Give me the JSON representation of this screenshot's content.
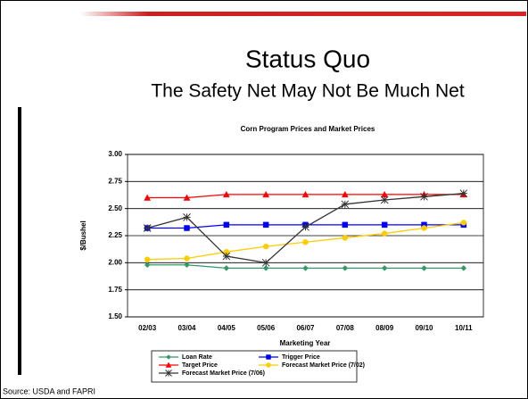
{
  "slide": {
    "title": "Status Quo",
    "subtitle": "The Safety Net May Not Be Much Net",
    "source": "Source: USDA and FAPRI"
  },
  "chart_data": {
    "type": "line",
    "title": "Corn Program Prices and Market Prices",
    "x_label": "Marketing Year",
    "y_label": "$/Bushel",
    "categories": [
      "02/03",
      "03/04",
      "04/05",
      "05/06",
      "06/07",
      "07/08",
      "08/09",
      "09/10",
      "10/11"
    ],
    "ylim": [
      1.5,
      3.0
    ],
    "yticks": [
      {
        "value": 1.5,
        "label": "1.50"
      },
      {
        "value": 1.75,
        "label": "1.75"
      },
      {
        "value": 2.0,
        "label": "2.00"
      },
      {
        "value": 2.25,
        "label": "2.25"
      },
      {
        "value": 2.5,
        "label": "2.50"
      },
      {
        "value": 2.75,
        "label": "2.75"
      },
      {
        "value": 3.0,
        "label": "3.00"
      }
    ],
    "grid": true,
    "series": [
      {
        "name": "Loan Rate",
        "color": "#339966",
        "marker": "diamond",
        "values": [
          1.98,
          1.98,
          1.95,
          1.95,
          1.95,
          1.95,
          1.95,
          1.95,
          1.95
        ]
      },
      {
        "name": "Trigger Price",
        "color": "#0000ff",
        "marker": "square",
        "values": [
          2.32,
          2.32,
          2.35,
          2.35,
          2.35,
          2.35,
          2.35,
          2.35,
          2.35
        ]
      },
      {
        "name": "Target Price",
        "color": "#ff0000",
        "marker": "triangle",
        "values": [
          2.6,
          2.6,
          2.63,
          2.63,
          2.63,
          2.63,
          2.63,
          2.63,
          2.63
        ]
      },
      {
        "name": "Forecast Market Price (7/02)",
        "color": "#ffcc00",
        "marker": "circle",
        "values": [
          2.03,
          2.04,
          2.1,
          2.15,
          2.19,
          2.23,
          2.27,
          2.32,
          2.37
        ]
      },
      {
        "name": "Forecast Market Price (7/06)",
        "color": "#333333",
        "marker": "star",
        "values": [
          2.32,
          2.42,
          2.06,
          2.0,
          2.33,
          2.54,
          2.58,
          2.61,
          2.64
        ]
      }
    ]
  }
}
